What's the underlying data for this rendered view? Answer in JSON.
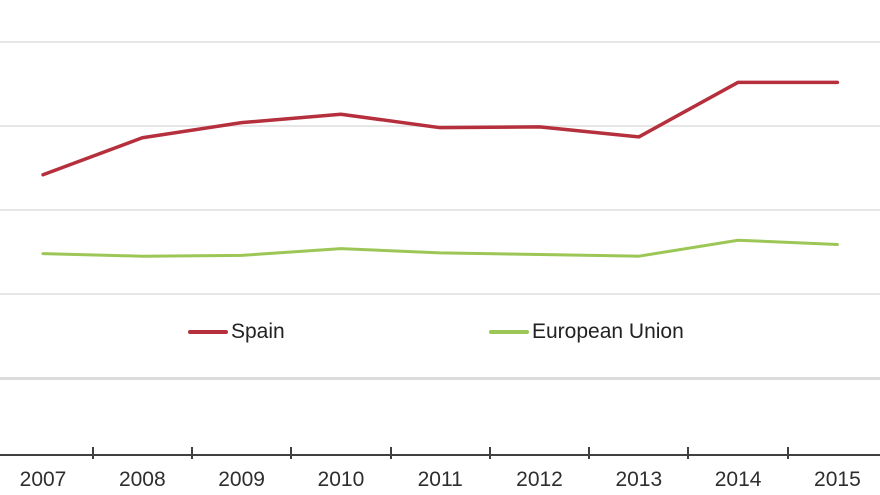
{
  "chart_data": {
    "type": "line",
    "categories": [
      "2007",
      "2008",
      "2009",
      "2010",
      "2011",
      "2012",
      "2013",
      "2014",
      "2015"
    ],
    "series": [
      {
        "name": "Spain",
        "color": "#b5303c",
        "values": [
          2.42,
          2.86,
          3.04,
          3.14,
          2.98,
          2.99,
          2.87,
          3.52,
          3.52
        ]
      },
      {
        "name": "European Union",
        "color": "#9cc655",
        "values": [
          1.48,
          1.45,
          1.46,
          1.54,
          1.49,
          1.47,
          1.45,
          1.64,
          1.59
        ]
      }
    ],
    "title": "",
    "xlabel": "",
    "ylabel": "",
    "y_axis": {
      "labels_visible": false,
      "gridline_values": [
        0,
        1,
        2,
        3,
        4
      ]
    },
    "ylim": [
      0,
      4.5
    ],
    "grid": true,
    "legend_position": "inside-bottom"
  },
  "appearance": {
    "background_color": "#ffffff",
    "gridline_color": "#e7e7e7",
    "axis_color": "#404040",
    "label_color": "#2e2e2e"
  }
}
